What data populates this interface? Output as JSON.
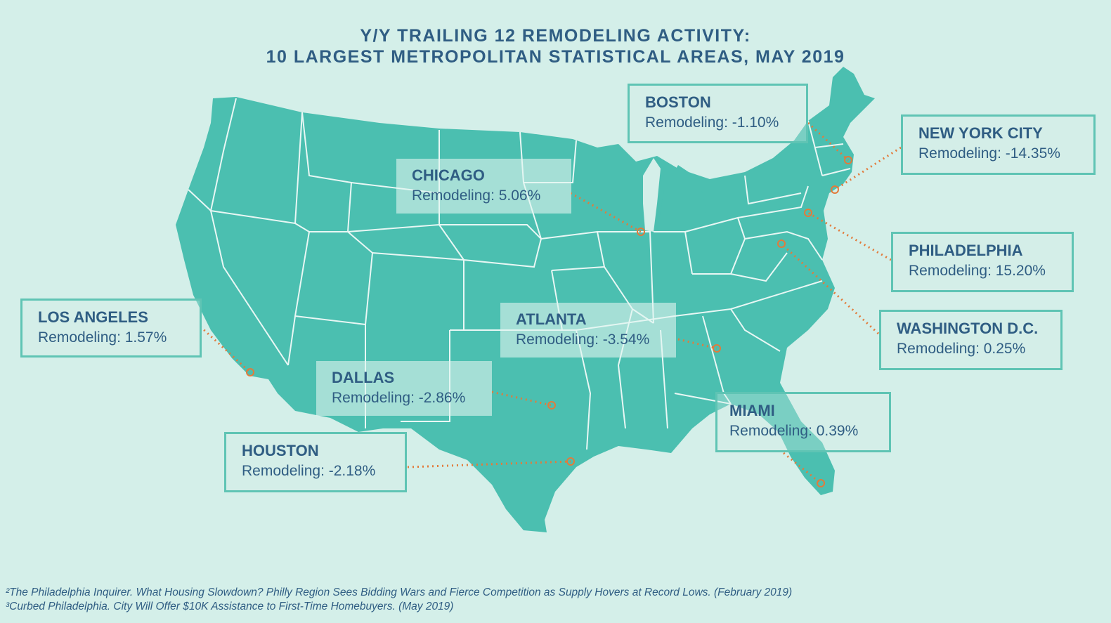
{
  "title": {
    "line1": "Y/Y TRAILING 12 REMODELING ACTIVITY:",
    "line2": "10 LARGEST METROPOLITAN STATISTICAL AREAS, MAY 2019"
  },
  "colors": {
    "land": "#4bbfb0",
    "borders": "#e8f7f4",
    "background": "#d4efe9",
    "text": "#2f5d83",
    "leader": "#e27b3b"
  },
  "metros": [
    {
      "id": "boston",
      "city": "BOSTON",
      "label": "Remodeling: -1.10%",
      "change_pct": -1.1
    },
    {
      "id": "new-york-city",
      "city": "NEW YORK CITY",
      "label": "Remodeling: -14.35%",
      "change_pct": -14.35
    },
    {
      "id": "chicago",
      "city": "CHICAGO",
      "label": "Remodeling: 5.06%",
      "change_pct": 5.06
    },
    {
      "id": "philadelphia",
      "city": "PHILADELPHIA",
      "label": "Remodeling: 15.20%",
      "change_pct": 15.2
    },
    {
      "id": "washington-dc",
      "city": "WASHINGTON D.C.",
      "label": "Remodeling: 0.25%",
      "change_pct": 0.25
    },
    {
      "id": "atlanta",
      "city": "ATLANTA",
      "label": "Remodeling: -3.54%",
      "change_pct": -3.54
    },
    {
      "id": "los-angeles",
      "city": "LOS ANGELES",
      "label": "Remodeling: 1.57%",
      "change_pct": 1.57
    },
    {
      "id": "dallas",
      "city": "DALLAS",
      "label": "Remodeling: -2.86%",
      "change_pct": -2.86
    },
    {
      "id": "miami",
      "city": "MIAMI",
      "label": "Remodeling: 0.39%",
      "change_pct": 0.39
    },
    {
      "id": "houston",
      "city": "HOUSTON",
      "label": "Remodeling: -2.18%",
      "change_pct": -2.18
    }
  ],
  "footnotes": [
    "²The Philadelphia Inquirer. What Housing Slowdown? Philly Region Sees Bidding Wars and Fierce Competition as Supply Hovers at Record Lows. (February 2019)",
    "³Curbed Philadelphia. City Will Offer $10K Assistance to First-Time Homebuyers. (May 2019)"
  ]
}
